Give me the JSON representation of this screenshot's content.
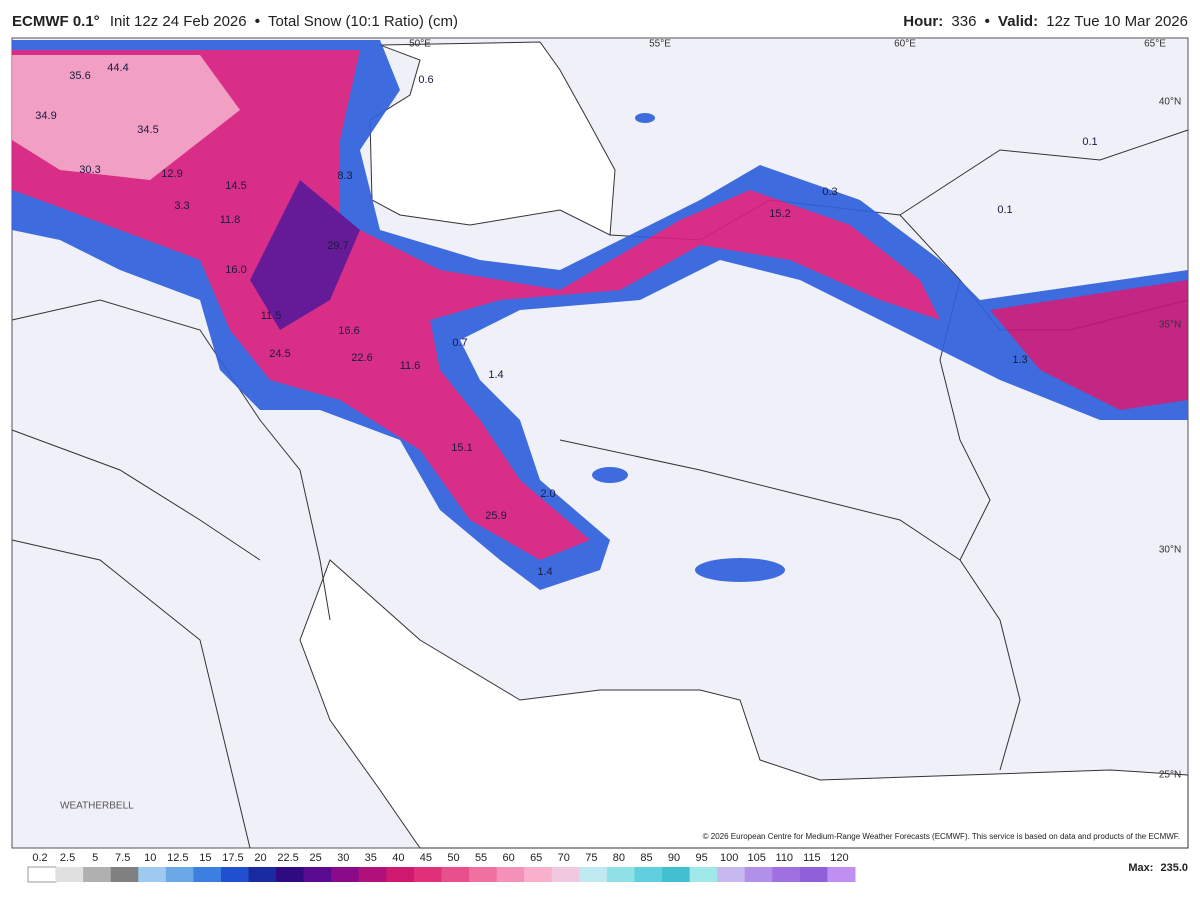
{
  "header": {
    "model": "ECMWF 0.1°",
    "init": "Init 12z 24 Feb 2026",
    "separator": "•",
    "product": "Total Snow (10:1 Ratio) (cm)",
    "hour_label": "Hour:",
    "hour": "336",
    "valid_label": "Valid:",
    "valid": "12z Tue 10 Mar 2026"
  },
  "map": {
    "grid_labels": [
      "50°E",
      "55°E",
      "60°E",
      "65°E",
      "40°N",
      "35°N",
      "30°N",
      "25°N"
    ],
    "values": [
      "35.6",
      "44.4",
      "34.9",
      "34.5",
      "30.3",
      "12.9",
      "14.5",
      "3.3",
      "11.8",
      "8.3",
      "0.6",
      "16.0",
      "29.7",
      "11.5",
      "16.6",
      "24.5",
      "22.6",
      "11.6",
      "0.7",
      "1.4",
      "15.1",
      "2.0",
      "25.9",
      "1.4",
      "0.3",
      "15.2",
      "0.1",
      "0.1",
      "1.3"
    ],
    "logo": "WEATHERBELL",
    "credit": "© 2026 European Centre for Medium-Range Weather Forecasts (ECMWF). This service is based on data and products of the ECMWF."
  },
  "legend": {
    "labels": [
      "0.2",
      "2.5",
      "5",
      "7.5",
      "10",
      "12.5",
      "15",
      "17.5",
      "20",
      "22.5",
      "25",
      "30",
      "35",
      "40",
      "45",
      "50",
      "55",
      "60",
      "65",
      "70",
      "75",
      "80",
      "85",
      "90",
      "95",
      "100",
      "105",
      "110",
      "115",
      "120"
    ],
    "colors": [
      "#ffffff",
      "#e0e0e0",
      "#b0b0b0",
      "#808080",
      "#9ec9f0",
      "#6aa8e8",
      "#3d7fe0",
      "#2050d0",
      "#1a2aa0",
      "#300a80",
      "#5a0a90",
      "#8a0a8a",
      "#b0107a",
      "#d0186e",
      "#e0307a",
      "#e8508c",
      "#f070a0",
      "#f590b8",
      "#f8b0cc",
      "#f0c8e0",
      "#c0e8f0",
      "#90e0e8",
      "#60d0e0",
      "#40c0d0",
      "#a0e8e8",
      "#c8b8f0",
      "#b090e8",
      "#a070e0",
      "#9060d8",
      "#c090f0"
    ],
    "max_label": "Max:",
    "max": "235.0"
  }
}
